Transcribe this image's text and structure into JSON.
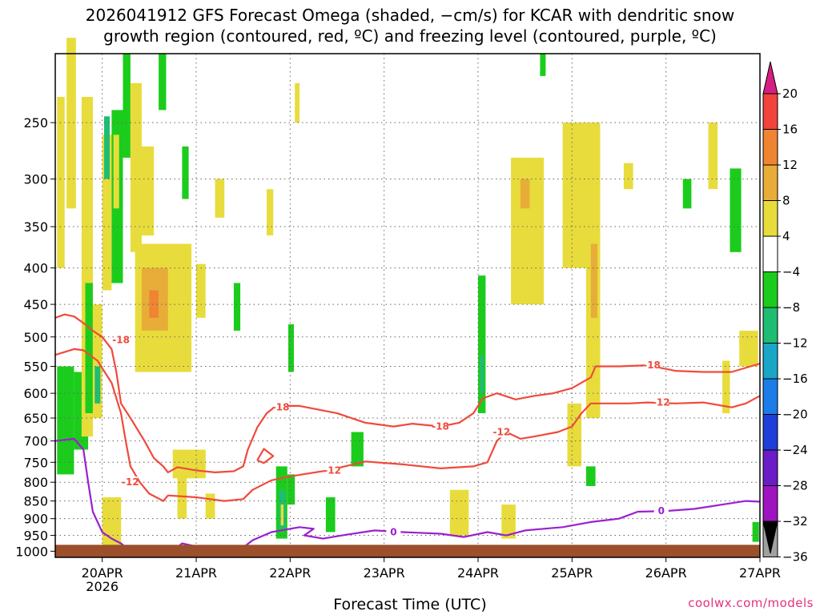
{
  "title": {
    "line1": "2026041912 GFS Forecast Omega (shaded, −cm/s) for KCAR with dendritic snow",
    "line2": "growth region (contoured, red, ºC) and freezing level (contoured, purple, ºC)"
  },
  "credit": "coolwx.com/models",
  "chart_data": {
    "type": "heatmap",
    "xlabel": "Forecast Time (UTC)",
    "ylabel": "",
    "x_ticks": [
      "20APR",
      "21APR",
      "22APR",
      "23APR",
      "24APR",
      "25APR",
      "26APR",
      "27APR"
    ],
    "x_year_label": "2026",
    "y_ticks": [
      250,
      300,
      350,
      400,
      450,
      500,
      550,
      600,
      650,
      700,
      750,
      800,
      850,
      900,
      950,
      1000
    ],
    "y_scale": "log",
    "x_range_days": [
      19.5,
      27.0
    ],
    "y_range_hpa": [
      200,
      1020
    ],
    "grid": true,
    "colorbar": {
      "levels": [
        20,
        16,
        12,
        8,
        4,
        -4,
        -8,
        -12,
        -16,
        -20,
        -24,
        -28,
        -32,
        -36
      ],
      "colors": [
        "#d61f83",
        "#f2433d",
        "#ef8432",
        "#e8ad38",
        "#e8dc3c",
        "#ffffff",
        "#1ccc1c",
        "#1ebd72",
        "#19a6c7",
        "#1c7ce8",
        "#1f3dd9",
        "#6b1cc7",
        "#9e14c0",
        "#a0a0a0",
        "#000000"
      ]
    },
    "contours": [
      {
        "name": "dendritic -18",
        "color": "#f04a3c",
        "label": "-18"
      },
      {
        "name": "dendritic -12",
        "color": "#f04a3c",
        "label": "-12"
      },
      {
        "name": "freezing level",
        "color": "#9b1fd0",
        "label": "0"
      }
    ],
    "patches": [
      {
        "x0": 19.52,
        "x1": 19.6,
        "p0": 230,
        "p1": 400,
        "cls": 1
      },
      {
        "x0": 19.52,
        "x1": 19.7,
        "p0": 550,
        "p1": 780,
        "cls": 2
      },
      {
        "x0": 19.62,
        "x1": 19.72,
        "p0": 190,
        "p1": 330,
        "cls": 1
      },
      {
        "x0": 19.7,
        "x1": 19.85,
        "p0": 560,
        "p1": 720,
        "cls": 2
      },
      {
        "x0": 19.78,
        "x1": 19.9,
        "p0": 230,
        "p1": 690,
        "cls": 1
      },
      {
        "x0": 19.82,
        "x1": 19.9,
        "p0": 420,
        "p1": 640,
        "cls": 2
      },
      {
        "x0": 19.9,
        "x1": 20.0,
        "p0": 450,
        "p1": 650,
        "cls": 1
      },
      {
        "x0": 19.92,
        "x1": 19.98,
        "p0": 550,
        "p1": 620,
        "cls": 3
      },
      {
        "x0": 20.0,
        "x1": 20.1,
        "p0": 260,
        "p1": 430,
        "cls": 1
      },
      {
        "x0": 20.02,
        "x1": 20.08,
        "p0": 245,
        "p1": 300,
        "cls": 3
      },
      {
        "x0": 20.1,
        "x1": 20.22,
        "p0": 240,
        "p1": 420,
        "cls": 2
      },
      {
        "x0": 20.12,
        "x1": 20.18,
        "p0": 260,
        "p1": 330,
        "cls": 1
      },
      {
        "x0": 20.22,
        "x1": 20.3,
        "p0": 200,
        "p1": 280,
        "cls": 2
      },
      {
        "x0": 20.3,
        "x1": 20.42,
        "p0": 220,
        "p1": 380,
        "cls": 4
      },
      {
        "x0": 20.4,
        "x1": 20.55,
        "p0": 270,
        "p1": 360,
        "cls": 4
      },
      {
        "x0": 20.35,
        "x1": 20.95,
        "p0": 370,
        "p1": 560,
        "cls": 4
      },
      {
        "x0": 20.42,
        "x1": 20.7,
        "p0": 400,
        "p1": 490,
        "cls": 5
      },
      {
        "x0": 20.5,
        "x1": 20.6,
        "p0": 430,
        "p1": 470,
        "cls": 6
      },
      {
        "x0": 20.85,
        "x1": 20.92,
        "p0": 270,
        "p1": 320,
        "cls": 2
      },
      {
        "x0": 20.6,
        "x1": 20.68,
        "p0": 200,
        "p1": 240,
        "cls": 2
      },
      {
        "x0": 20.0,
        "x1": 20.2,
        "p0": 840,
        "p1": 980,
        "cls": 4
      },
      {
        "x0": 20.75,
        "x1": 21.1,
        "p0": 720,
        "p1": 790,
        "cls": 4
      },
      {
        "x0": 20.8,
        "x1": 20.9,
        "p0": 770,
        "p1": 900,
        "cls": 4
      },
      {
        "x0": 21.1,
        "x1": 21.2,
        "p0": 830,
        "p1": 900,
        "cls": 4
      },
      {
        "x0": 21.0,
        "x1": 21.1,
        "p0": 395,
        "p1": 470,
        "cls": 4
      },
      {
        "x0": 21.2,
        "x1": 21.3,
        "p0": 300,
        "p1": 340,
        "cls": 4
      },
      {
        "x0": 21.4,
        "x1": 21.47,
        "p0": 420,
        "p1": 490,
        "cls": 2
      },
      {
        "x0": 21.85,
        "x1": 21.97,
        "p0": 760,
        "p1": 960,
        "cls": 2
      },
      {
        "x0": 21.88,
        "x1": 21.95,
        "p0": 820,
        "p1": 930,
        "cls": 3
      },
      {
        "x0": 21.9,
        "x1": 21.93,
        "p0": 860,
        "p1": 920,
        "cls": 4
      },
      {
        "x0": 21.97,
        "x1": 22.05,
        "p0": 780,
        "p1": 860,
        "cls": 2
      },
      {
        "x0": 21.75,
        "x1": 21.82,
        "p0": 310,
        "p1": 360,
        "cls": 4
      },
      {
        "x0": 21.98,
        "x1": 22.04,
        "p0": 480,
        "p1": 560,
        "cls": 2
      },
      {
        "x0": 22.38,
        "x1": 22.48,
        "p0": 840,
        "p1": 940,
        "cls": 2
      },
      {
        "x0": 22.65,
        "x1": 22.78,
        "p0": 680,
        "p1": 760,
        "cls": 2
      },
      {
        "x0": 22.05,
        "x1": 22.1,
        "p0": 220,
        "p1": 250,
        "cls": 4
      },
      {
        "x0": 23.7,
        "x1": 23.9,
        "p0": 820,
        "p1": 950,
        "cls": 4
      },
      {
        "x0": 24.0,
        "x1": 24.08,
        "p0": 410,
        "p1": 640,
        "cls": 2
      },
      {
        "x0": 24.02,
        "x1": 24.06,
        "p0": 530,
        "p1": 600,
        "cls": 3
      },
      {
        "x0": 24.25,
        "x1": 24.4,
        "p0": 860,
        "p1": 960,
        "cls": 4
      },
      {
        "x0": 24.35,
        "x1": 24.7,
        "p0": 280,
        "p1": 450,
        "cls": 4
      },
      {
        "x0": 24.45,
        "x1": 24.55,
        "p0": 300,
        "p1": 330,
        "cls": 5
      },
      {
        "x0": 24.9,
        "x1": 25.3,
        "p0": 250,
        "p1": 400,
        "cls": 4
      },
      {
        "x0": 25.15,
        "x1": 25.3,
        "p0": 370,
        "p1": 650,
        "cls": 4
      },
      {
        "x0": 25.2,
        "x1": 25.27,
        "p0": 370,
        "p1": 470,
        "cls": 5
      },
      {
        "x0": 24.95,
        "x1": 25.1,
        "p0": 620,
        "p1": 760,
        "cls": 4
      },
      {
        "x0": 25.15,
        "x1": 25.25,
        "p0": 760,
        "p1": 810,
        "cls": 2
      },
      {
        "x0": 25.55,
        "x1": 25.65,
        "p0": 285,
        "p1": 310,
        "cls": 4
      },
      {
        "x0": 26.18,
        "x1": 26.27,
        "p0": 300,
        "p1": 330,
        "cls": 2
      },
      {
        "x0": 26.45,
        "x1": 26.55,
        "p0": 250,
        "p1": 310,
        "cls": 4
      },
      {
        "x0": 26.68,
        "x1": 26.8,
        "p0": 290,
        "p1": 380,
        "cls": 2
      },
      {
        "x0": 26.78,
        "x1": 26.98,
        "p0": 490,
        "p1": 550,
        "cls": 4
      },
      {
        "x0": 26.6,
        "x1": 26.68,
        "p0": 540,
        "p1": 640,
        "cls": 4
      },
      {
        "x0": 26.92,
        "x1": 26.99,
        "p0": 910,
        "p1": 970,
        "cls": 2
      },
      {
        "x0": 24.66,
        "x1": 24.72,
        "p0": 200,
        "p1": 215,
        "cls": 2
      }
    ]
  }
}
